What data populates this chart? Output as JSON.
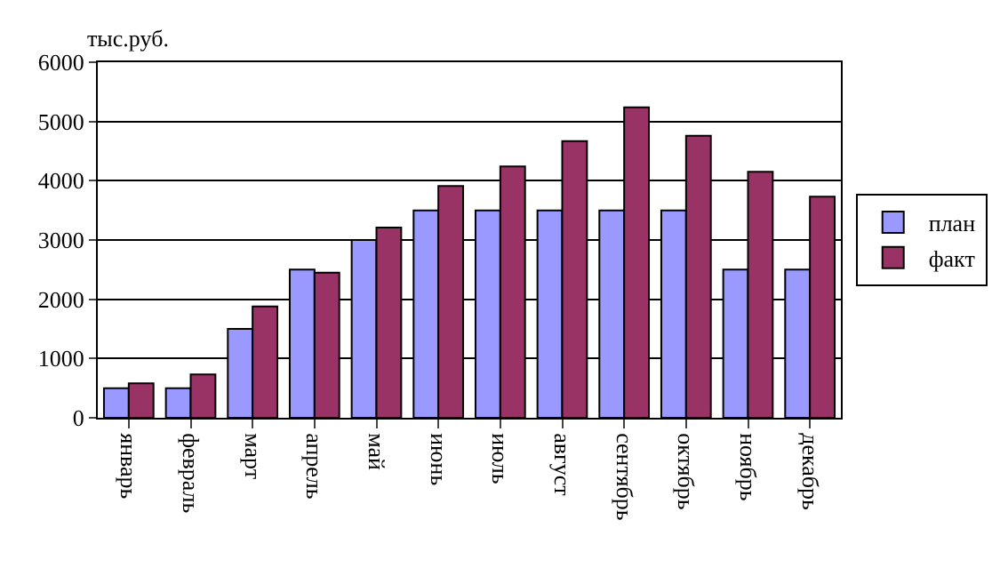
{
  "chart_data": {
    "type": "bar",
    "ylabel": "тыс.руб.",
    "categories": [
      "январь",
      "февраль",
      "март",
      "апрель",
      "май",
      "июнь",
      "июль",
      "август",
      "сентябрь",
      "октябрь",
      "ноябрь",
      "декабрь"
    ],
    "series": [
      {
        "name": "план",
        "color": "#9999ff",
        "values": [
          500,
          500,
          1500,
          2500,
          3000,
          3500,
          3500,
          3500,
          3500,
          3500,
          2500,
          2500
        ]
      },
      {
        "name": "факт",
        "color": "#993366",
        "values": [
          580,
          730,
          1880,
          2450,
          3210,
          3910,
          4240,
          4670,
          5240,
          4760,
          4150,
          3730
        ]
      }
    ],
    "ylim": [
      0,
      6000
    ],
    "yticks": [
      0,
      1000,
      2000,
      3000,
      4000,
      5000,
      6000
    ],
    "grid": "y",
    "legend": "right"
  }
}
